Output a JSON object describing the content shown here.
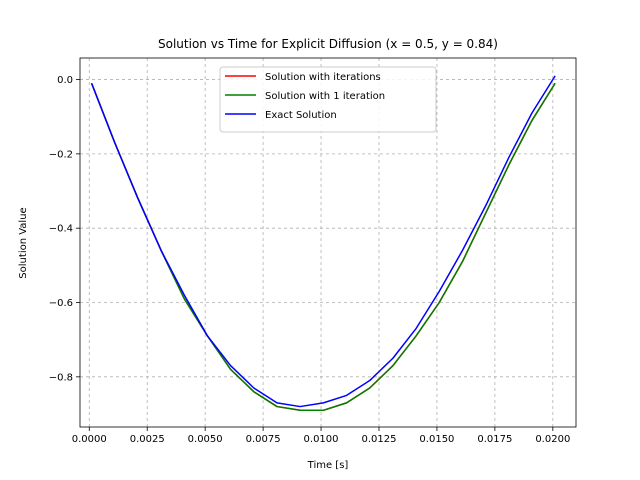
{
  "chart_data": {
    "type": "line",
    "title": "Solution vs Time for Explicit Diffusion (x = 0.5, y = 0.84)",
    "xlabel": "Time [s]",
    "ylabel": "Solution Value",
    "xlim": [
      -0.0004,
      0.021
    ],
    "ylim": [
      -0.935,
      0.058
    ],
    "xticks": [
      0.0,
      0.0025,
      0.005,
      0.0075,
      0.01,
      0.0125,
      0.015,
      0.0175,
      0.02
    ],
    "xtick_labels": [
      "0.0000",
      "0.0025",
      "0.0050",
      "0.0075",
      "0.0100",
      "0.0125",
      "0.0150",
      "0.0175",
      "0.0200"
    ],
    "yticks": [
      0.0,
      -0.2,
      -0.4,
      -0.6,
      -0.8
    ],
    "ytick_labels": [
      "0.0",
      "−0.2",
      "−0.4",
      "−0.6",
      "−0.8"
    ],
    "grid": true,
    "legend_position": "top-center",
    "series": [
      {
        "name": "Solution with iterations",
        "color": "#ff0000",
        "x": [
          0.0001,
          0.0011,
          0.0021,
          0.0031,
          0.0041,
          0.0051,
          0.0061,
          0.0071,
          0.0081,
          0.0091,
          0.0101,
          0.0111,
          0.0121,
          0.0131,
          0.0141,
          0.0151,
          0.0161,
          0.0171,
          0.0181,
          0.0191,
          0.0201
        ],
        "y": [
          -0.01,
          -0.17,
          -0.32,
          -0.46,
          -0.59,
          -0.69,
          -0.78,
          -0.84,
          -0.88,
          -0.89,
          -0.89,
          -0.87,
          -0.83,
          -0.77,
          -0.69,
          -0.6,
          -0.49,
          -0.36,
          -0.23,
          -0.11,
          -0.01
        ]
      },
      {
        "name": "Solution with 1 iteration",
        "color": "#008000",
        "x": [
          0.0001,
          0.0011,
          0.0021,
          0.0031,
          0.0041,
          0.0051,
          0.0061,
          0.0071,
          0.0081,
          0.0091,
          0.0101,
          0.0111,
          0.0121,
          0.0131,
          0.0141,
          0.0151,
          0.0161,
          0.0171,
          0.0181,
          0.0191,
          0.0201
        ],
        "y": [
          -0.01,
          -0.17,
          -0.32,
          -0.46,
          -0.59,
          -0.69,
          -0.78,
          -0.84,
          -0.88,
          -0.89,
          -0.89,
          -0.87,
          -0.83,
          -0.77,
          -0.69,
          -0.6,
          -0.49,
          -0.36,
          -0.23,
          -0.11,
          -0.01
        ]
      },
      {
        "name": "Exact Solution",
        "color": "#0000ff",
        "x": [
          0.0001,
          0.0011,
          0.0021,
          0.0031,
          0.0041,
          0.0051,
          0.0061,
          0.0071,
          0.0081,
          0.0091,
          0.0101,
          0.0111,
          0.0121,
          0.0131,
          0.0141,
          0.0151,
          0.0161,
          0.0171,
          0.0181,
          0.0191,
          0.0201
        ],
        "y": [
          -0.01,
          -0.17,
          -0.32,
          -0.46,
          -0.58,
          -0.69,
          -0.77,
          -0.83,
          -0.87,
          -0.88,
          -0.87,
          -0.85,
          -0.81,
          -0.75,
          -0.67,
          -0.57,
          -0.46,
          -0.34,
          -0.21,
          -0.09,
          0.01
        ]
      }
    ]
  }
}
